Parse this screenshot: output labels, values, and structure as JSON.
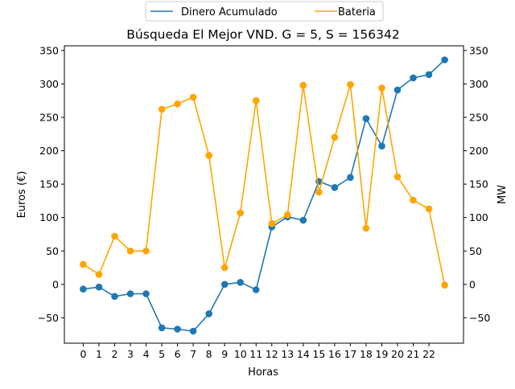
{
  "chart_data": {
    "type": "line",
    "title": "Búsqueda El Mejor VND. G = 5, S = 156342",
    "xlabel": "Horas",
    "ylabel": "Euros (€)",
    "y2label": "MW",
    "x": [
      0,
      1,
      2,
      3,
      4,
      5,
      6,
      7,
      8,
      9,
      10,
      11,
      12,
      13,
      14,
      15,
      16,
      17,
      18,
      19,
      20,
      21,
      22,
      23
    ],
    "xticks": [
      "0",
      "1",
      "2",
      "3",
      "4",
      "5",
      "6",
      "7",
      "8",
      "9",
      "10",
      "11",
      "12",
      "13",
      "14",
      "15",
      "16",
      "17",
      "18",
      "19",
      "20",
      "21",
      "22"
    ],
    "xlim": [
      -1.2,
      24.2
    ],
    "ylim": [
      -88,
      357
    ],
    "yticks": [
      "−50",
      "0",
      "50",
      "100",
      "150",
      "200",
      "250",
      "300",
      "350"
    ],
    "ytick_values": [
      -50,
      0,
      50,
      100,
      150,
      200,
      250,
      300,
      350
    ],
    "legend_placement": "top-center-outside",
    "grid": false,
    "series": [
      {
        "name": "Dinero Acumulado",
        "color": "#1f77b4",
        "axis": "left",
        "values": [
          -7,
          -4,
          -18,
          -14,
          -14,
          -65,
          -67,
          -70,
          -44,
          0,
          3,
          -8,
          86,
          101,
          96,
          154,
          145,
          160,
          248,
          207,
          291,
          309,
          314,
          336
        ]
      },
      {
        "name": "Bateria",
        "color": "#ffa500",
        "axis": "right",
        "values": [
          30,
          15,
          72,
          50,
          50,
          262,
          270,
          280,
          193,
          25,
          107,
          275,
          91,
          104,
          298,
          138,
          220,
          299,
          84,
          294,
          161,
          126,
          113,
          -1
        ]
      }
    ]
  }
}
